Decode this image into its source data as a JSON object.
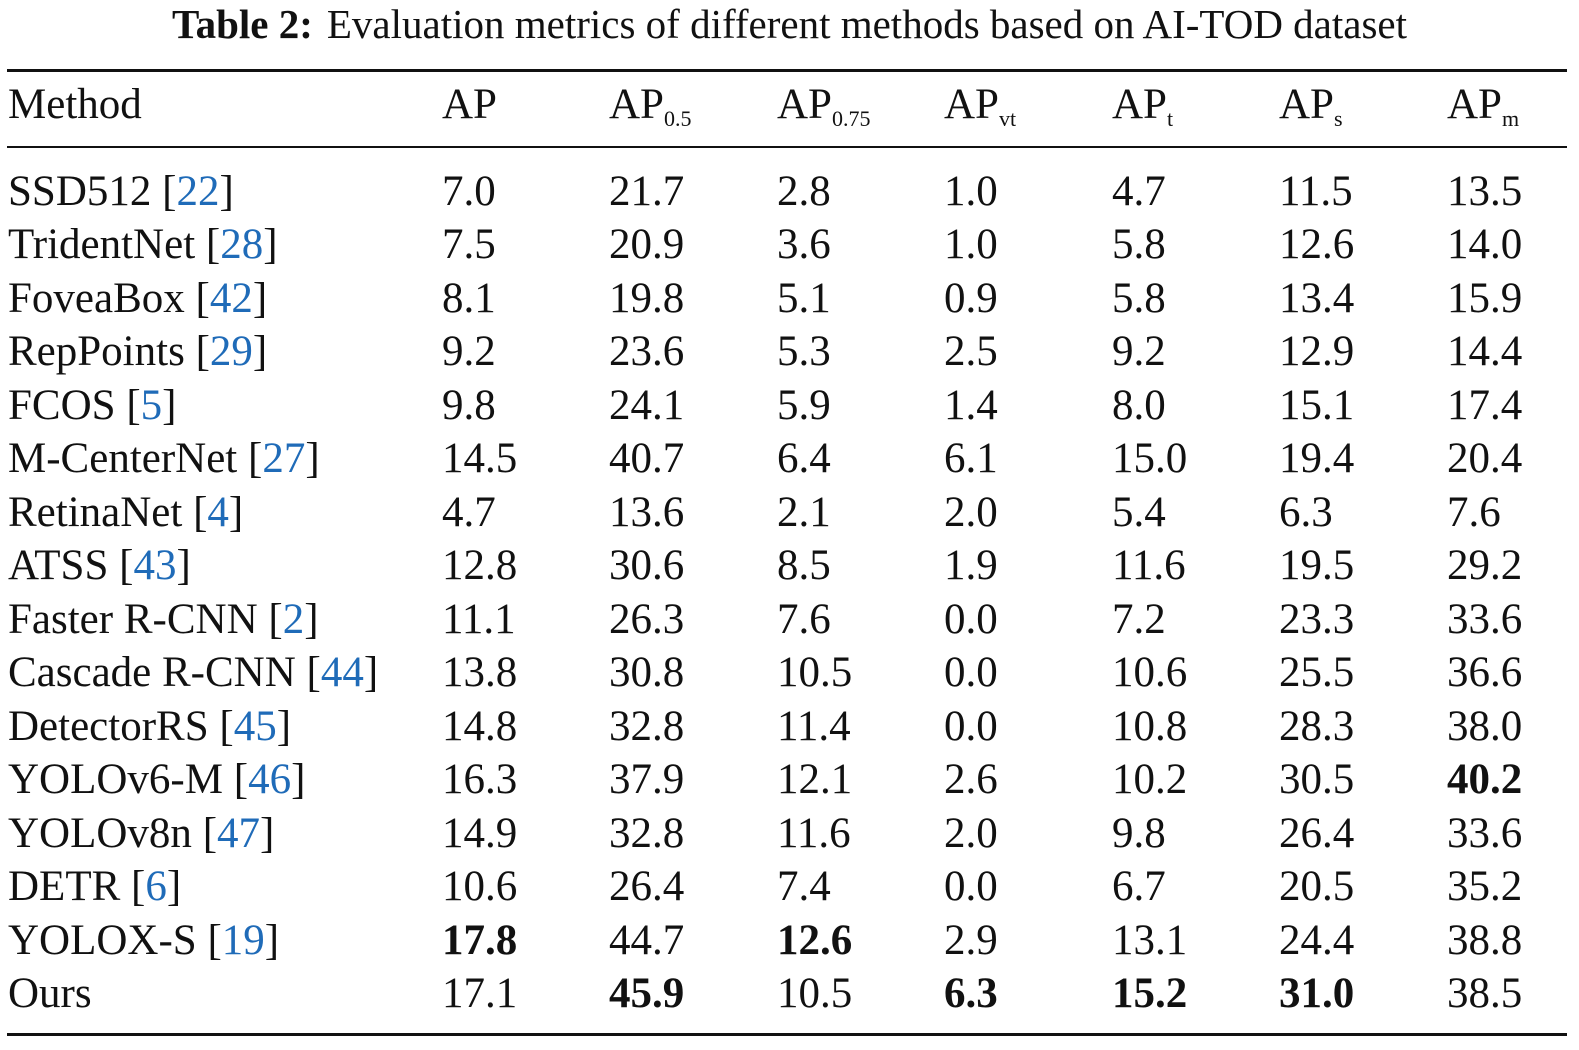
{
  "caption": {
    "label": "Table 2:",
    "text": "Evaluation metrics of different methods based on AI-TOD dataset"
  },
  "header": {
    "method": "Method",
    "ap": "AP",
    "ap50_base": "AP",
    "ap50_sub": "0.5",
    "ap75_base": "AP",
    "ap75_sub": "0.75",
    "apvt_base": "AP",
    "apvt_sub": "vt",
    "apt_base": "AP",
    "apt_sub": "t",
    "aps_base": "AP",
    "aps_sub": "s",
    "apm_base": "AP",
    "apm_sub": "m"
  },
  "rows": [
    {
      "method": "SSD512 ",
      "ref": "22",
      "values": [
        "7.0",
        "21.7",
        "2.8",
        "1.0",
        "4.7",
        "11.5",
        "13.5"
      ]
    },
    {
      "method": "TridentNet ",
      "ref": "28",
      "values": [
        "7.5",
        "20.9",
        "3.6",
        "1.0",
        "5.8",
        "12.6",
        "14.0"
      ]
    },
    {
      "method": "FoveaBox ",
      "ref": "42",
      "values": [
        "8.1",
        "19.8",
        "5.1",
        "0.9",
        "5.8",
        "13.4",
        "15.9"
      ]
    },
    {
      "method": "RepPoints ",
      "ref": "29",
      "values": [
        "9.2",
        "23.6",
        "5.3",
        "2.5",
        "9.2",
        "12.9",
        "14.4"
      ]
    },
    {
      "method": "FCOS ",
      "ref": "5",
      "values": [
        "9.8",
        "24.1",
        "5.9",
        "1.4",
        "8.0",
        "15.1",
        "17.4"
      ]
    },
    {
      "method": "M-CenterNet ",
      "ref": "27",
      "values": [
        "14.5",
        "40.7",
        "6.4",
        "6.1",
        "15.0",
        "19.4",
        "20.4"
      ]
    },
    {
      "method": "RetinaNet ",
      "ref": "4",
      "values": [
        "4.7",
        "13.6",
        "2.1",
        "2.0",
        "5.4",
        "6.3",
        "7.6"
      ]
    },
    {
      "method": "ATSS ",
      "ref": "43",
      "values": [
        "12.8",
        "30.6",
        "8.5",
        "1.9",
        "11.6",
        "19.5",
        "29.2"
      ]
    },
    {
      "method": "Faster R-CNN ",
      "ref": "2",
      "values": [
        "11.1",
        "26.3",
        "7.6",
        "0.0",
        "7.2",
        "23.3",
        "33.6"
      ]
    },
    {
      "method": "Cascade R-CNN ",
      "ref": "44",
      "values": [
        "13.8",
        "30.8",
        "10.5",
        "0.0",
        "10.6",
        "25.5",
        "36.6"
      ]
    },
    {
      "method": "DetectorRS ",
      "ref": "45",
      "values": [
        "14.8",
        "32.8",
        "11.4",
        "0.0",
        "10.8",
        "28.3",
        "38.0"
      ]
    },
    {
      "method": "YOLOv6-M ",
      "ref": "46",
      "values": [
        "16.3",
        "37.9",
        "12.1",
        "2.6",
        "10.2",
        "30.5",
        "40.2"
      ]
    },
    {
      "method": "YOLOv8n ",
      "ref": "47",
      "values": [
        "14.9",
        "32.8",
        "11.6",
        "2.0",
        "9.8",
        "26.4",
        "33.6"
      ]
    },
    {
      "method": "DETR ",
      "ref": "6",
      "values": [
        "10.6",
        "26.4",
        "7.4",
        "0.0",
        "6.7",
        "20.5",
        "35.2"
      ]
    },
    {
      "method": "YOLOX-S ",
      "ref": "19",
      "values": [
        "17.8",
        "44.7",
        "12.6",
        "2.9",
        "13.1",
        "24.4",
        "38.8"
      ]
    },
    {
      "method": "Ours",
      "ref": "",
      "values": [
        "17.1",
        "45.9",
        "10.5",
        "6.3",
        "15.2",
        "31.0",
        "38.5"
      ]
    }
  ],
  "colors": {
    "text": "#111111",
    "reference_link": "#1f6bb8"
  }
}
